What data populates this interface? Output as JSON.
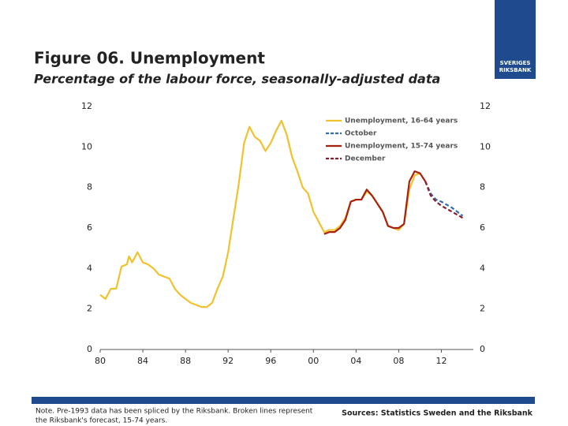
{
  "chart_data": {
    "type": "line",
    "title": "Figure 06. Unemployment",
    "subtitle": "Percentage of the labour force, seasonally-adjusted data",
    "xlim": [
      1980,
      2015
    ],
    "xticks": [
      {
        "value": 1980,
        "label": "80"
      },
      {
        "value": 1984,
        "label": "84"
      },
      {
        "value": 1988,
        "label": "88"
      },
      {
        "value": 1992,
        "label": "92"
      },
      {
        "value": 1996,
        "label": "96"
      },
      {
        "value": 2000,
        "label": "00"
      },
      {
        "value": 2004,
        "label": "04"
      },
      {
        "value": 2008,
        "label": "08"
      },
      {
        "value": 2012,
        "label": "12"
      }
    ],
    "ylim": [
      0,
      12
    ],
    "yticks": [
      0,
      2,
      4,
      6,
      8,
      10,
      12
    ],
    "y2lim": [
      0,
      12
    ],
    "y2ticks": [
      0,
      2,
      4,
      6,
      8,
      10,
      12
    ],
    "legend": "top-right",
    "series": [
      {
        "name": "Unemployment, 16-64 years",
        "color": "#f2c12e",
        "dashed": false,
        "x": [
          1980,
          1980.5,
          1981,
          1981.5,
          1982,
          1982.5,
          1982.7,
          1983,
          1983.5,
          1984,
          1984.5,
          1985,
          1985.5,
          1986,
          1986.5,
          1987,
          1987.5,
          1988,
          1988.5,
          1989,
          1989.5,
          1990,
          1990.5,
          1991,
          1991.5,
          1992,
          1992.5,
          1993,
          1993.5,
          1994,
          1994.5,
          1995,
          1995.5,
          1996,
          1996.5,
          1997,
          1997.5,
          1998,
          1998.5,
          1999,
          1999.5,
          2000,
          2000.5,
          2001,
          2001.5,
          2002,
          2002.5,
          2003,
          2003.5,
          2004,
          2004.5,
          2005,
          2005.5,
          2006,
          2006.5,
          2007,
          2007.5,
          2008,
          2008.5,
          2009,
          2009.5,
          2010
        ],
        "values": [
          2.7,
          2.5,
          3.0,
          3.0,
          4.1,
          4.2,
          4.6,
          4.3,
          4.8,
          4.3,
          4.2,
          4.0,
          3.7,
          3.6,
          3.5,
          3.0,
          2.7,
          2.5,
          2.3,
          2.2,
          2.1,
          2.1,
          2.3,
          3.0,
          3.6,
          4.8,
          6.5,
          8.2,
          10.2,
          11.0,
          10.5,
          10.3,
          9.8,
          10.2,
          10.8,
          11.3,
          10.6,
          9.5,
          8.8,
          8.0,
          7.7,
          6.8,
          6.3,
          5.8,
          5.9,
          5.9,
          6.1,
          6.5,
          7.3,
          7.4,
          7.4,
          7.8,
          7.6,
          7.2,
          6.8,
          6.1,
          6.0,
          5.9,
          6.2,
          7.9,
          8.6,
          8.7
        ]
      },
      {
        "name": "October",
        "color": "#2e6db4",
        "dashed": true,
        "x": [
          2010.5,
          2011,
          2011.5,
          2012,
          2013,
          2014
        ],
        "values": [
          8.3,
          7.7,
          7.4,
          7.3,
          7.0,
          6.6
        ]
      },
      {
        "name": "Unemployment, 15-74 years",
        "color": "#a8200e",
        "dashed": false,
        "x": [
          2001,
          2001.5,
          2002,
          2002.5,
          2003,
          2003.5,
          2004,
          2004.5,
          2005,
          2005.5,
          2006,
          2006.5,
          2007,
          2007.5,
          2008,
          2008.5,
          2009,
          2009.5,
          2010,
          2010.5
        ],
        "values": [
          5.7,
          5.8,
          5.8,
          6.0,
          6.4,
          7.3,
          7.4,
          7.4,
          7.9,
          7.6,
          7.2,
          6.8,
          6.1,
          6.0,
          6.0,
          6.2,
          8.3,
          8.8,
          8.7,
          8.3
        ]
      },
      {
        "name": "December",
        "color": "#8c1d2e",
        "dashed": true,
        "x": [
          2010.5,
          2011,
          2011.5,
          2012,
          2013,
          2014
        ],
        "values": [
          8.3,
          7.6,
          7.3,
          7.1,
          6.8,
          6.5
        ]
      }
    ]
  },
  "logo": [
    "SVERIGES",
    "RIKSBANK"
  ],
  "note": [
    "Note. Pre-1993 data has been spliced by the Riksbank. Broken lines represent",
    "the Riksbank's forecast, 15-74 years."
  ],
  "sources": "Sources: Statistics Sweden and the Riksbank"
}
